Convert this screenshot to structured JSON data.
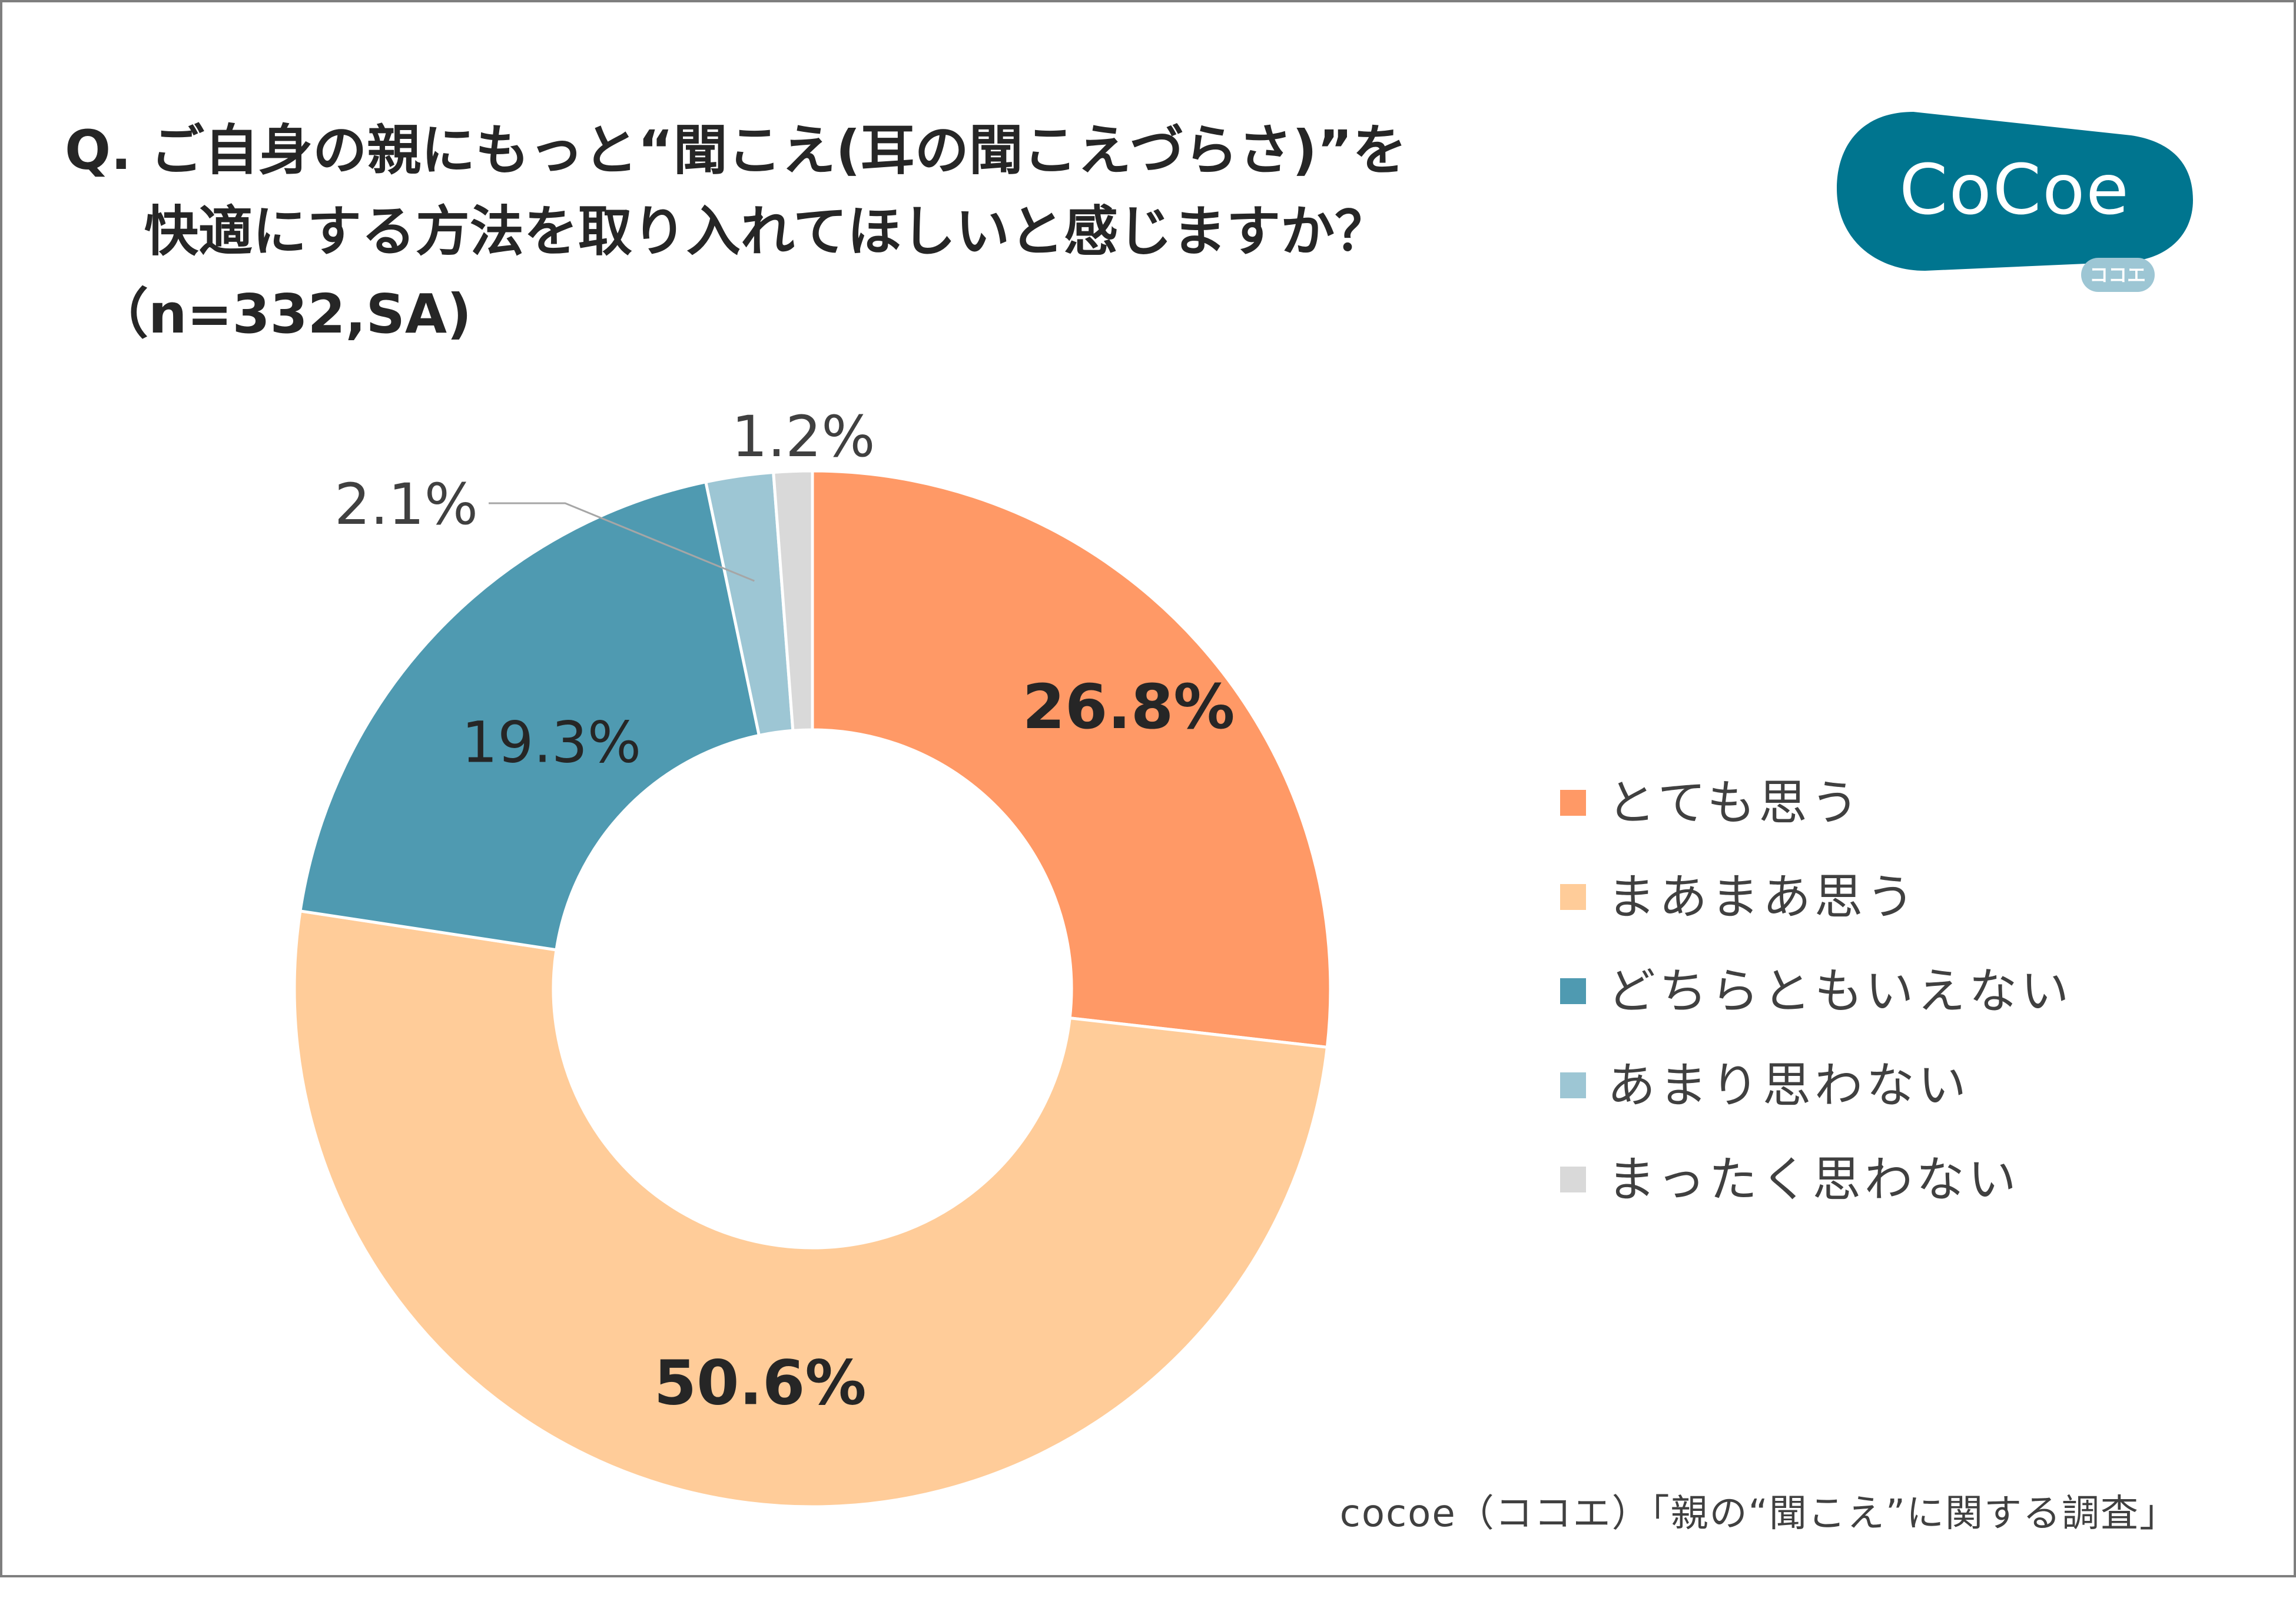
{
  "title": {
    "line1": "Q. ご自身の親にもっと“聞こえ(耳の聞こえづらさ)”を",
    "line2": "快適にする方法を取り入れてほしいと感じますか？",
    "line3": "（n=332,SA)"
  },
  "logo": {
    "main": "CoCoe",
    "sub": "ココエ"
  },
  "source": "cocoe（ココエ）「親の“聞こえ”に関する調査」",
  "colors": {
    "very": "#FF9966",
    "somewhat": "#FFCC99",
    "neither": "#4F9AB1",
    "notreally": "#9DC6D4",
    "notatall": "#D9D9D9",
    "logo": "#00758F"
  },
  "chart_data": {
    "type": "pie",
    "variant": "donut",
    "categories": [
      "とても思う",
      "まあまあ思う",
      "どちらともいえない",
      "あまり思わない",
      "まったく思わない"
    ],
    "values": [
      26.8,
      50.6,
      19.3,
      2.1,
      1.2
    ],
    "labels": [
      "26.8%",
      "50.6%",
      "19.3%",
      "2.1%",
      "1.2%"
    ],
    "legend_position": "right"
  }
}
